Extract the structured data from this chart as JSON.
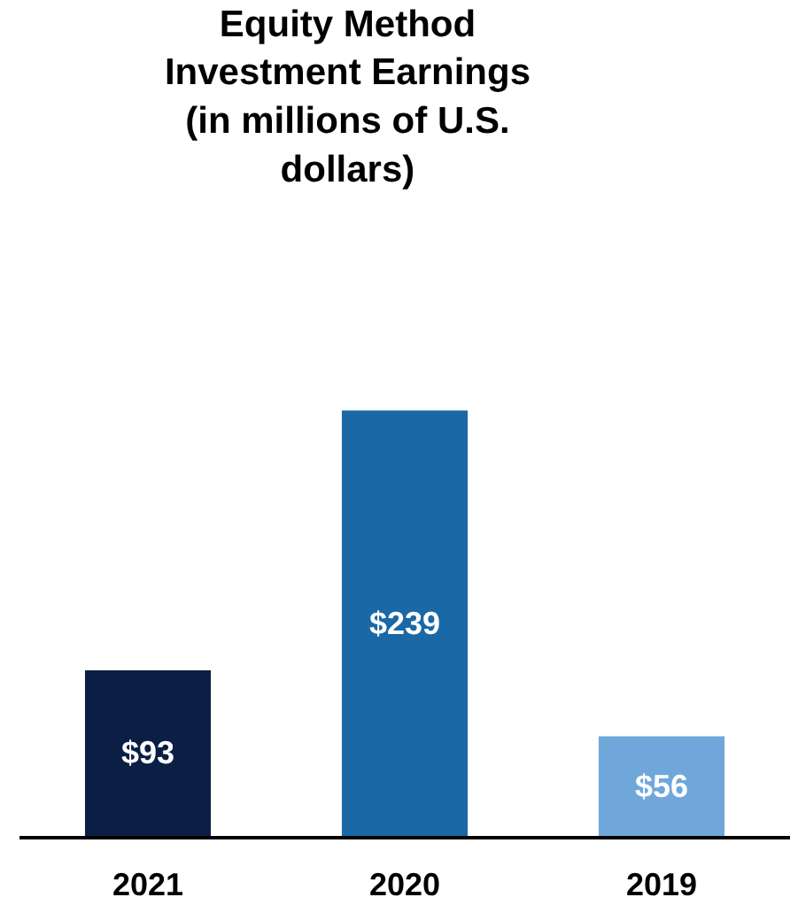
{
  "chart_data": {
    "type": "bar",
    "title": "Equity Method Investment Earnings (in millions of U.S. dollars)",
    "categories": [
      "2021",
      "2020",
      "2019"
    ],
    "values": [
      93,
      239,
      56
    ],
    "colors": [
      "#0b1f45",
      "#1a68a6",
      "#6fa7db"
    ],
    "value_labels": [
      "$93",
      "$239",
      "$56"
    ]
  }
}
